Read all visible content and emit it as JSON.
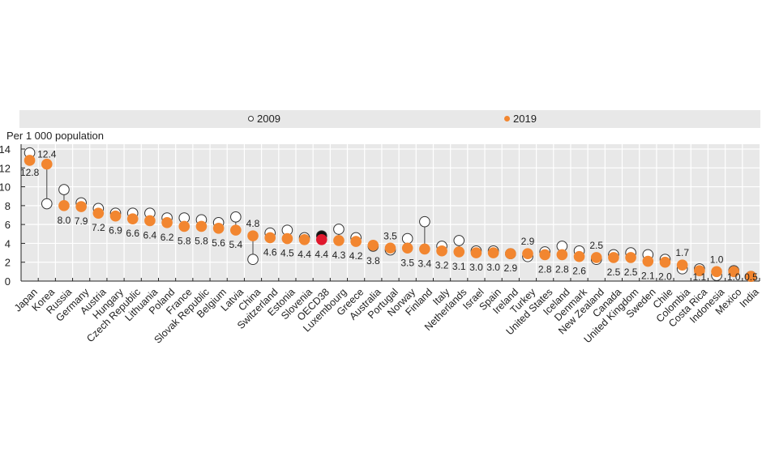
{
  "chart_data": {
    "type": "scatter",
    "subtype": "dot-plot",
    "title": "",
    "ylabel": "Per 1 000 population",
    "xlabel": "",
    "ylim": [
      0,
      14
    ],
    "yticks": [
      0,
      2,
      4,
      6,
      8,
      10,
      12,
      14
    ],
    "grid": true,
    "legend_position": "top",
    "categories": [
      "Japan",
      "Korea",
      "Russia",
      "Germany",
      "Austria",
      "Hungary",
      "Czech Republic",
      "Lithuania",
      "Poland",
      "France",
      "Slovak Republic",
      "Belgium",
      "Latvia",
      "China",
      "Switzerland",
      "Estonia",
      "Slovenia",
      "OECD38",
      "Luxembourg",
      "Greece",
      "Australia",
      "Portugal",
      "Norway",
      "Finland",
      "Italy",
      "Netherlands",
      "Israel",
      "Spain",
      "Ireland",
      "Turkey",
      "United States",
      "Iceland",
      "Denmark",
      "New Zealand",
      "Canada",
      "United Kingdom",
      "Sweden",
      "Chile",
      "Colombia",
      "Costa Rica",
      "Indonesia",
      "Mexico",
      "India"
    ],
    "highlight_category": "OECD38",
    "series": [
      {
        "name": "2009",
        "marker": "hollow-circle",
        "color": "#ffffff",
        "stroke": "#333333",
        "highlight_color": "#111111",
        "values": [
          13.6,
          8.2,
          9.7,
          8.3,
          7.7,
          7.2,
          7.2,
          7.2,
          6.7,
          6.7,
          6.5,
          6.2,
          6.8,
          2.3,
          5.1,
          5.4,
          4.6,
          4.8,
          5.5,
          4.6,
          3.7,
          3.3,
          4.5,
          6.3,
          3.7,
          4.3,
          3.2,
          3.2,
          2.9,
          2.6,
          3.1,
          3.7,
          3.2,
          2.3,
          2.8,
          3.0,
          2.8,
          2.3,
          1.3,
          1.3,
          0.6,
          1.1,
          0.5
        ]
      },
      {
        "name": "2019",
        "marker": "filled-circle",
        "color": "#f28630",
        "highlight_color": "#e0182d",
        "values": [
          12.8,
          12.4,
          8.0,
          7.9,
          7.2,
          6.9,
          6.6,
          6.4,
          6.2,
          5.8,
          5.8,
          5.6,
          5.4,
          4.8,
          4.6,
          4.5,
          4.4,
          4.4,
          4.3,
          4.2,
          3.8,
          3.5,
          3.5,
          3.4,
          3.2,
          3.1,
          3.0,
          3.0,
          2.9,
          2.9,
          2.8,
          2.8,
          2.6,
          2.5,
          2.5,
          2.5,
          2.1,
          2.0,
          1.7,
          1.1,
          1.0,
          1.0,
          0.5
        ],
        "labels": [
          "12.8",
          "12.4",
          "8.0",
          "7.9",
          "7.2",
          "6.9",
          "6.6",
          "6.4",
          "6.2",
          "5.8",
          "5.8",
          "5.6",
          "5.4",
          "4.8",
          "4.6",
          "4.5",
          "4.4",
          "4.4",
          "4.3",
          "4.2",
          "3.8",
          "3.5",
          "3.5",
          "3.4",
          "3.2",
          "3.1",
          "3.0",
          "3.0",
          "2.9",
          "2.9",
          "2.8",
          "2.8",
          "2.6",
          "2.5",
          "2.5",
          "2.5",
          "2.1",
          "2.0",
          "1.7",
          "1.1",
          "1.0",
          "1.0",
          "0.5"
        ]
      }
    ]
  },
  "legend": {
    "item_2009": "2009",
    "item_2019": "2019"
  },
  "axis": {
    "unit_label": "Per 1 000 population"
  }
}
